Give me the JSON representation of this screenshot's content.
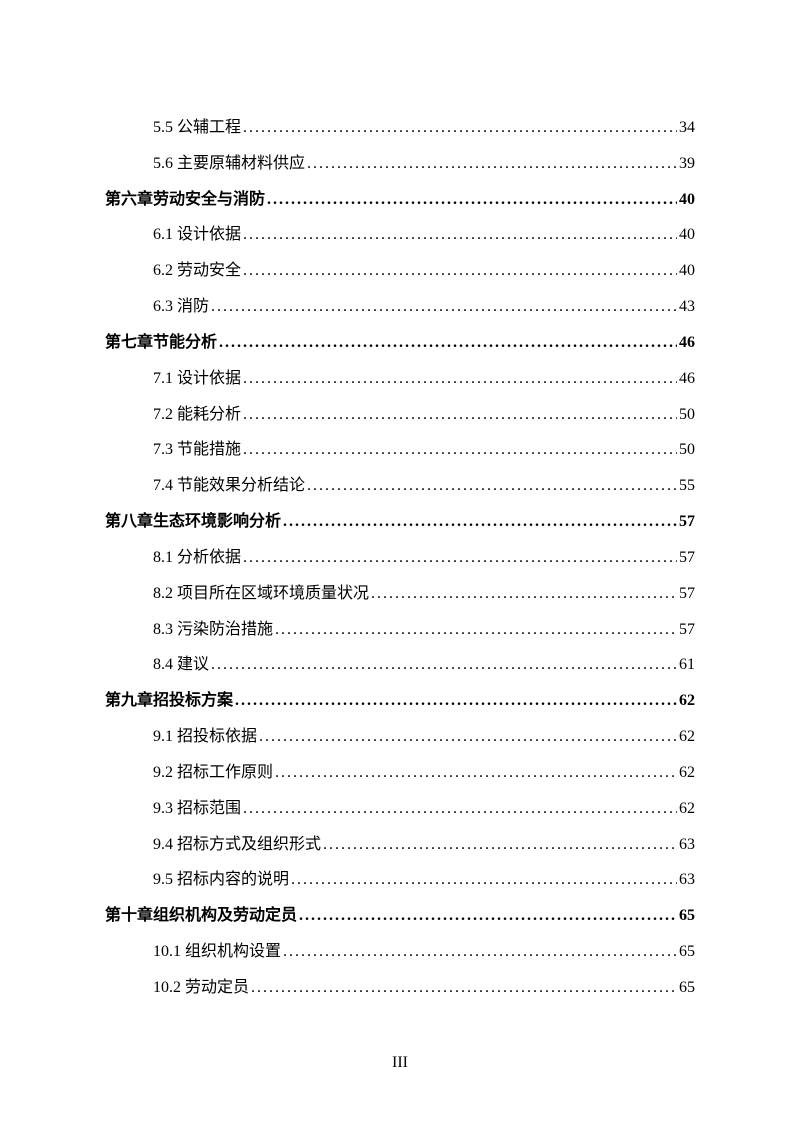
{
  "entries": [
    {
      "level": "sub",
      "label": "5.5 公辅工程 ",
      "page": "34"
    },
    {
      "level": "sub",
      "label": "5.6 主要原辅材料供应 ",
      "page": "39"
    },
    {
      "level": "chapter",
      "label": "第六章劳动安全与消防 ",
      "page": "40"
    },
    {
      "level": "sub",
      "label": "6.1 设计依据 ",
      "page": "40"
    },
    {
      "level": "sub",
      "label": "6.2 劳动安全 ",
      "page": "40"
    },
    {
      "level": "sub",
      "label": "6.3 消防 ",
      "page": "43"
    },
    {
      "level": "chapter",
      "label": "第七章节能分析 ",
      "page": "46"
    },
    {
      "level": "sub",
      "label": "7.1 设计依据 ",
      "page": "46"
    },
    {
      "level": "sub",
      "label": "7.2 能耗分析 ",
      "page": "50"
    },
    {
      "level": "sub",
      "label": "7.3 节能措施 ",
      "page": "50"
    },
    {
      "level": "sub",
      "label": "7.4 节能效果分析结论 ",
      "page": "55"
    },
    {
      "level": "chapter",
      "label": "第八章生态环境影响分析 ",
      "page": "57"
    },
    {
      "level": "sub",
      "label": "8.1 分析依据 ",
      "page": "57"
    },
    {
      "level": "sub",
      "label": "8.2 项目所在区域环境质量状况 ",
      "page": "57"
    },
    {
      "level": "sub",
      "label": "8.3 污染防治措施 ",
      "page": "57"
    },
    {
      "level": "sub",
      "label": "8.4 建议",
      "page": "61"
    },
    {
      "level": "chapter",
      "label": "第九章招投标方案 ",
      "page": "62"
    },
    {
      "level": "sub",
      "label": "9.1 招投标依据 ",
      "page": "62"
    },
    {
      "level": "sub",
      "label": "9.2 招标工作原则 ",
      "page": "62"
    },
    {
      "level": "sub",
      "label": "9.3 招标范围 ",
      "page": "62"
    },
    {
      "level": "sub",
      "label": "9.4 招标方式及组织形式 ",
      "page": "63"
    },
    {
      "level": "sub",
      "label": "9.5 招标内容的说明 ",
      "page": "63"
    },
    {
      "level": "chapter",
      "label": "第十章组织机构及劳动定员 ",
      "page": "65"
    },
    {
      "level": "sub",
      "label": "10.1 组织机构设置 ",
      "page": "65"
    },
    {
      "level": "sub",
      "label": "10.2 劳动定员 ",
      "page": "65"
    }
  ],
  "page_number": "III"
}
